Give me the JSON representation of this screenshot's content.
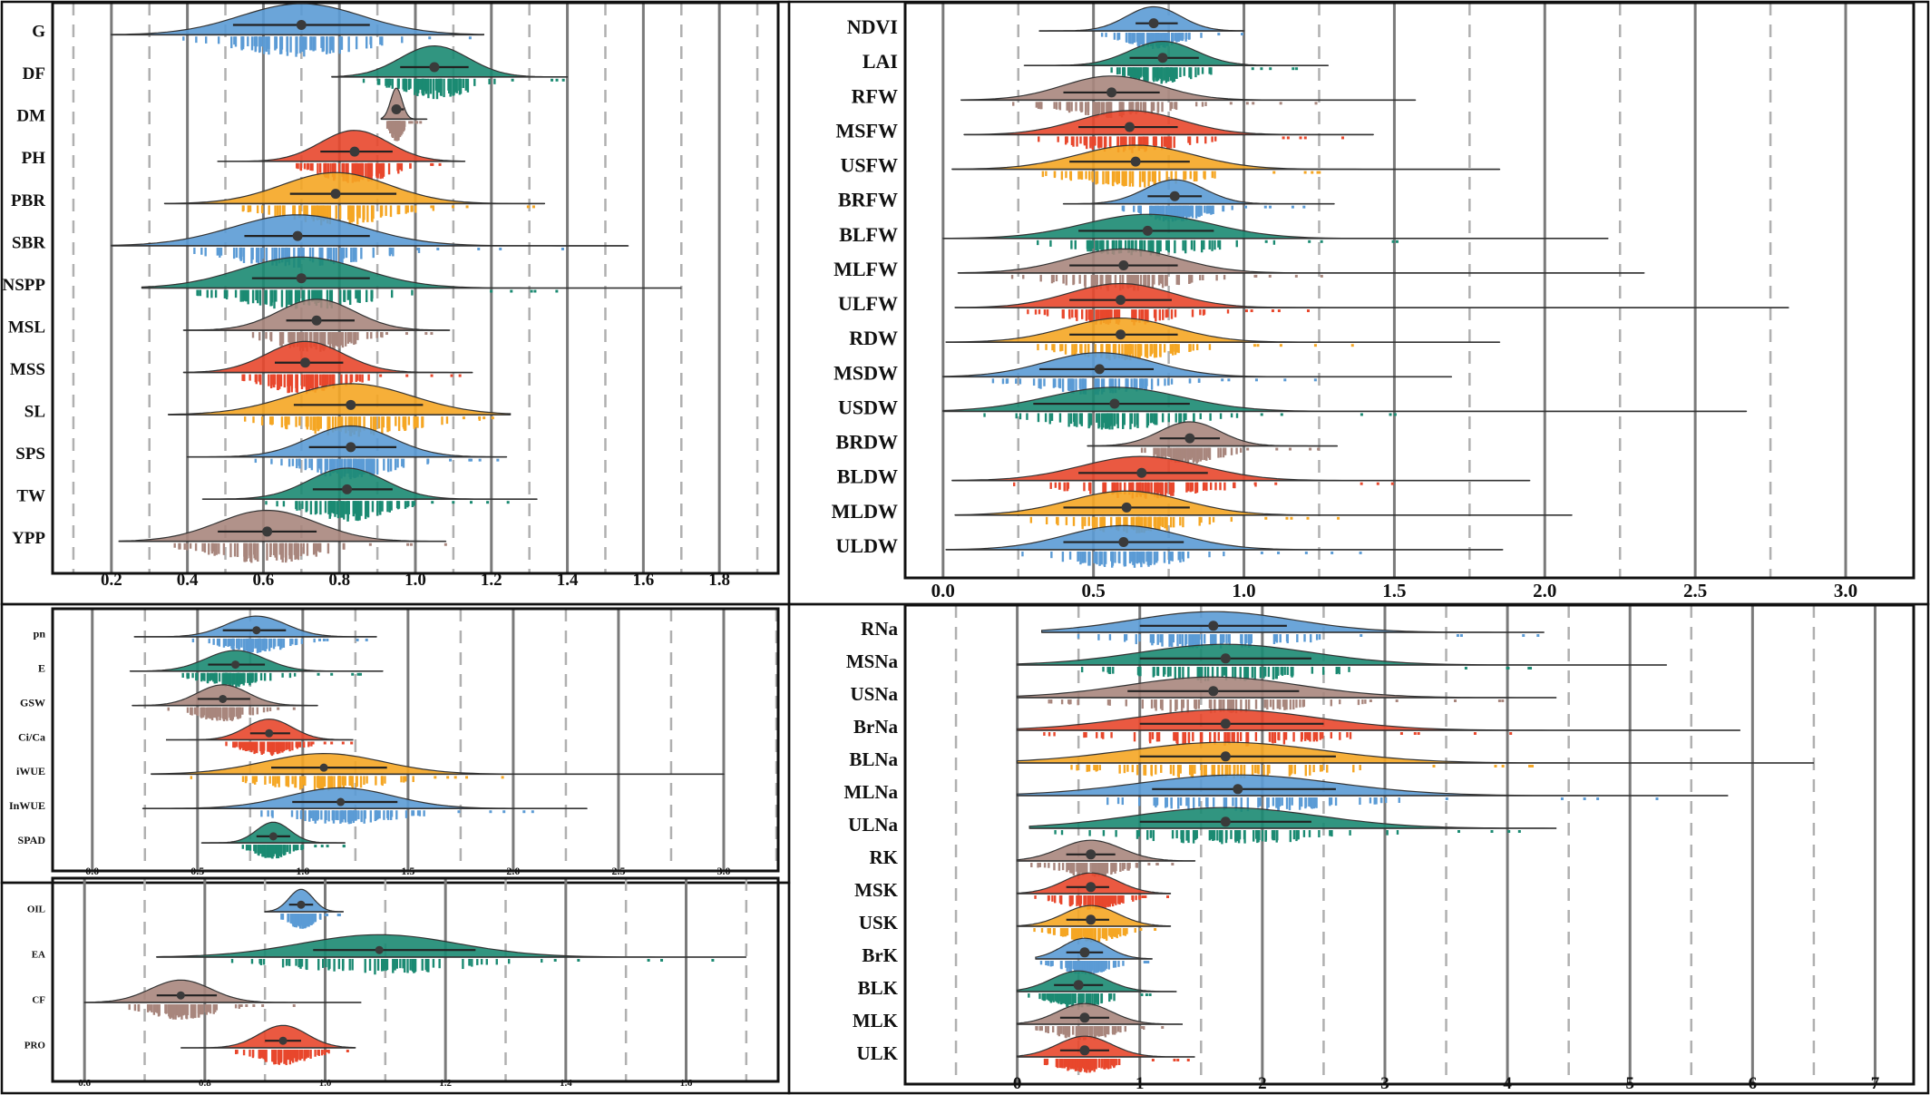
{
  "chart_data": [
    {
      "type": "raincloud",
      "panel": "top-left",
      "xlim": [
        0.05,
        1.95
      ],
      "xticks": [
        "0.2",
        "0.4",
        "0.6",
        "0.8",
        "1.0",
        "1.2",
        "1.4",
        "1.6",
        "1.8"
      ],
      "grid": "solid major + dashed minor vertical lines",
      "series": [
        {
          "name": "G",
          "color": "#5b9bd5",
          "median": 0.7,
          "min": 0.2,
          "max": 1.18,
          "q1": 0.52,
          "q3": 0.88,
          "spread": 0.16
        },
        {
          "name": "DF",
          "color": "#1b8a72",
          "median": 1.05,
          "min": 0.78,
          "max": 1.4,
          "q1": 0.96,
          "q3": 1.14,
          "spread": 0.09
        },
        {
          "name": "DM",
          "color": "#a8867d",
          "median": 0.95,
          "min": 0.91,
          "max": 1.03,
          "q1": 0.94,
          "q3": 0.97,
          "spread": 0.015
        },
        {
          "name": "PH",
          "color": "#e8472c",
          "median": 0.84,
          "min": 0.48,
          "max": 1.13,
          "q1": 0.75,
          "q3": 0.94,
          "spread": 0.09
        },
        {
          "name": "PBR",
          "color": "#f5a623",
          "median": 0.79,
          "min": 0.34,
          "max": 1.34,
          "q1": 0.67,
          "q3": 0.95,
          "spread": 0.14
        },
        {
          "name": "SBR",
          "color": "#5b9bd5",
          "median": 0.69,
          "min": 0.2,
          "max": 1.56,
          "q1": 0.55,
          "q3": 0.88,
          "spread": 0.17
        },
        {
          "name": "NSPP",
          "color": "#1b8a72",
          "median": 0.7,
          "min": 0.28,
          "max": 1.7,
          "q1": 0.57,
          "q3": 0.88,
          "spread": 0.16
        },
        {
          "name": "MSL",
          "color": "#a8867d",
          "median": 0.74,
          "min": 0.39,
          "max": 1.09,
          "q1": 0.66,
          "q3": 0.84,
          "spread": 0.1
        },
        {
          "name": "MSS",
          "color": "#e8472c",
          "median": 0.71,
          "min": 0.39,
          "max": 1.15,
          "q1": 0.63,
          "q3": 0.81,
          "spread": 0.1
        },
        {
          "name": "SL",
          "color": "#f5a623",
          "median": 0.83,
          "min": 0.35,
          "max": 1.25,
          "q1": 0.68,
          "q3": 1.02,
          "spread": 0.16
        },
        {
          "name": "SPS",
          "color": "#5b9bd5",
          "median": 0.83,
          "min": 0.4,
          "max": 1.24,
          "q1": 0.72,
          "q3": 0.95,
          "spread": 0.11
        },
        {
          "name": "TW",
          "color": "#1b8a72",
          "median": 0.82,
          "min": 0.44,
          "max": 1.32,
          "q1": 0.73,
          "q3": 0.94,
          "spread": 0.1
        },
        {
          "name": "YPP",
          "color": "#a8867d",
          "median": 0.61,
          "min": 0.22,
          "max": 1.08,
          "q1": 0.48,
          "q3": 0.74,
          "spread": 0.13
        }
      ]
    },
    {
      "type": "raincloud",
      "panel": "top-right",
      "xlim": [
        -0.12,
        3.22
      ],
      "xticks": [
        "0.0",
        "0.5",
        "1.0",
        "1.5",
        "2.0",
        "2.5",
        "3.0"
      ],
      "grid": "solid major + dashed minor vertical lines",
      "series": [
        {
          "name": "NDVI",
          "color": "#5b9bd5",
          "median": 0.7,
          "min": 0.32,
          "max": 1.0,
          "q1": 0.64,
          "q3": 0.78,
          "spread": 0.09
        },
        {
          "name": "LAI",
          "color": "#1b8a72",
          "median": 0.73,
          "min": 0.27,
          "max": 1.28,
          "q1": 0.62,
          "q3": 0.85,
          "spread": 0.11
        },
        {
          "name": "RFW",
          "color": "#a8867d",
          "median": 0.56,
          "min": 0.06,
          "max": 1.57,
          "q1": 0.4,
          "q3": 0.72,
          "spread": 0.16
        },
        {
          "name": "MSFW",
          "color": "#e8472c",
          "median": 0.62,
          "min": 0.07,
          "max": 1.43,
          "q1": 0.45,
          "q3": 0.78,
          "spread": 0.17
        },
        {
          "name": "USFW",
          "color": "#f5a623",
          "median": 0.64,
          "min": 0.03,
          "max": 1.85,
          "q1": 0.42,
          "q3": 0.82,
          "spread": 0.19
        },
        {
          "name": "BRFW",
          "color": "#5b9bd5",
          "median": 0.77,
          "min": 0.4,
          "max": 1.3,
          "q1": 0.68,
          "q3": 0.86,
          "spread": 0.1
        },
        {
          "name": "BLFW",
          "color": "#1b8a72",
          "median": 0.68,
          "min": 0.0,
          "max": 2.21,
          "q1": 0.45,
          "q3": 0.9,
          "spread": 0.21
        },
        {
          "name": "MLFW",
          "color": "#a8867d",
          "median": 0.6,
          "min": 0.05,
          "max": 2.33,
          "q1": 0.42,
          "q3": 0.78,
          "spread": 0.18
        },
        {
          "name": "ULFW",
          "color": "#e8472c",
          "median": 0.59,
          "min": 0.04,
          "max": 2.81,
          "q1": 0.42,
          "q3": 0.76,
          "spread": 0.17
        },
        {
          "name": "RDW",
          "color": "#f5a623",
          "median": 0.59,
          "min": 0.01,
          "max": 1.85,
          "q1": 0.42,
          "q3": 0.78,
          "spread": 0.18
        },
        {
          "name": "MSDW",
          "color": "#5b9bd5",
          "median": 0.52,
          "min": 0.0,
          "max": 1.69,
          "q1": 0.32,
          "q3": 0.7,
          "spread": 0.18
        },
        {
          "name": "USDW",
          "color": "#1b8a72",
          "median": 0.57,
          "min": 0.0,
          "max": 2.67,
          "q1": 0.3,
          "q3": 0.82,
          "spread": 0.22
        },
        {
          "name": "BRDW",
          "color": "#a8867d",
          "median": 0.82,
          "min": 0.48,
          "max": 1.31,
          "q1": 0.72,
          "q3": 0.92,
          "spread": 0.1
        },
        {
          "name": "BLDW",
          "color": "#e8472c",
          "median": 0.66,
          "min": 0.03,
          "max": 1.95,
          "q1": 0.45,
          "q3": 0.88,
          "spread": 0.2
        },
        {
          "name": "MLDW",
          "color": "#f5a623",
          "median": 0.61,
          "min": 0.04,
          "max": 2.09,
          "q1": 0.4,
          "q3": 0.82,
          "spread": 0.19
        },
        {
          "name": "ULDW",
          "color": "#5b9bd5",
          "median": 0.6,
          "min": 0.01,
          "max": 1.86,
          "q1": 0.4,
          "q3": 0.8,
          "spread": 0.19
        }
      ]
    },
    {
      "type": "raincloud",
      "panel": "middle-left",
      "xlim": [
        -0.18,
        3.25
      ],
      "xticks": [
        "0.0",
        "0.5",
        "1.0",
        "1.5",
        "2.0",
        "2.5",
        "3.0"
      ],
      "grid": "solid major + dashed minor vertical lines",
      "series": [
        {
          "name": "pn",
          "color": "#5b9bd5",
          "median": 0.78,
          "min": 0.2,
          "max": 1.35,
          "q1": 0.62,
          "q3": 0.92,
          "spread": 0.14
        },
        {
          "name": "E",
          "color": "#1b8a72",
          "median": 0.68,
          "min": 0.18,
          "max": 1.38,
          "q1": 0.55,
          "q3": 0.82,
          "spread": 0.14
        },
        {
          "name": "GSW",
          "color": "#a8867d",
          "median": 0.62,
          "min": 0.19,
          "max": 1.07,
          "q1": 0.5,
          "q3": 0.75,
          "spread": 0.12
        },
        {
          "name": "Ci/Ca",
          "color": "#e8472c",
          "median": 0.84,
          "min": 0.35,
          "max": 1.24,
          "q1": 0.75,
          "q3": 0.94,
          "spread": 0.11
        },
        {
          "name": "iWUE",
          "color": "#f5a623",
          "median": 1.1,
          "min": 0.28,
          "max": 3.0,
          "q1": 0.85,
          "q3": 1.4,
          "spread": 0.28
        },
        {
          "name": "InWUE",
          "color": "#5b9bd5",
          "median": 1.18,
          "min": 0.24,
          "max": 2.35,
          "q1": 0.95,
          "q3": 1.45,
          "spread": 0.25
        },
        {
          "name": "SPAD",
          "color": "#1b8a72",
          "median": 0.86,
          "min": 0.52,
          "max": 1.2,
          "q1": 0.78,
          "q3": 0.94,
          "spread": 0.08
        }
      ]
    },
    {
      "type": "raincloud",
      "panel": "bottom-left",
      "xlim": [
        0.55,
        1.75
      ],
      "xticks": [
        "0.6",
        "0.8",
        "1.0",
        "1.2",
        "1.4",
        "1.6"
      ],
      "grid": "solid major + dashed minor vertical lines",
      "series": [
        {
          "name": "OIL",
          "color": "#5b9bd5",
          "median": 0.96,
          "min": 0.9,
          "max": 1.03,
          "q1": 0.94,
          "q3": 0.98,
          "spread": 0.02
        },
        {
          "name": "EA",
          "color": "#1b8a72",
          "median": 1.09,
          "min": 0.72,
          "max": 1.7,
          "q1": 0.98,
          "q3": 1.25,
          "spread": 0.13
        },
        {
          "name": "CF",
          "color": "#a8867d",
          "median": 0.76,
          "min": 0.6,
          "max": 1.06,
          "q1": 0.72,
          "q3": 0.82,
          "spread": 0.05
        },
        {
          "name": "PRO",
          "color": "#e8472c",
          "median": 0.93,
          "min": 0.76,
          "max": 1.05,
          "q1": 0.9,
          "q3": 0.96,
          "spread": 0.04
        }
      ]
    },
    {
      "type": "raincloud",
      "panel": "bottom-right",
      "xlim": [
        -0.9,
        7.3
      ],
      "xticks": [
        "0",
        "1",
        "2",
        "3",
        "4",
        "5",
        "6",
        "7"
      ],
      "grid": "solid major + dashed minor vertical lines",
      "series": [
        {
          "name": "RNa",
          "color": "#5b9bd5",
          "median": 1.6,
          "min": 0.2,
          "max": 4.3,
          "q1": 1.0,
          "q3": 2.2,
          "spread": 0.65
        },
        {
          "name": "MSNa",
          "color": "#1b8a72",
          "median": 1.7,
          "min": 0.0,
          "max": 5.3,
          "q1": 1.0,
          "q3": 2.4,
          "spread": 0.7
        },
        {
          "name": "USNa",
          "color": "#a8867d",
          "median": 1.6,
          "min": 0.0,
          "max": 4.4,
          "q1": 0.9,
          "q3": 2.3,
          "spread": 0.7
        },
        {
          "name": "BrNa",
          "color": "#e8472c",
          "median": 1.7,
          "min": 0.0,
          "max": 5.9,
          "q1": 1.0,
          "q3": 2.5,
          "spread": 0.75
        },
        {
          "name": "BLNa",
          "color": "#f5a623",
          "median": 1.7,
          "min": 0.0,
          "max": 6.5,
          "q1": 1.0,
          "q3": 2.6,
          "spread": 0.8
        },
        {
          "name": "MLNa",
          "color": "#5b9bd5",
          "median": 1.8,
          "min": 0.0,
          "max": 5.8,
          "q1": 1.1,
          "q3": 2.6,
          "spread": 0.8
        },
        {
          "name": "ULNa",
          "color": "#1b8a72",
          "median": 1.7,
          "min": 0.1,
          "max": 4.4,
          "q1": 1.0,
          "q3": 2.4,
          "spread": 0.75
        },
        {
          "name": "RK",
          "color": "#a8867d",
          "median": 0.6,
          "min": 0.0,
          "max": 1.45,
          "q1": 0.4,
          "q3": 0.8,
          "spread": 0.25
        },
        {
          "name": "MSK",
          "color": "#e8472c",
          "median": 0.6,
          "min": 0.0,
          "max": 1.25,
          "q1": 0.4,
          "q3": 0.75,
          "spread": 0.22
        },
        {
          "name": "USK",
          "color": "#f5a623",
          "median": 0.6,
          "min": 0.0,
          "max": 1.25,
          "q1": 0.4,
          "q3": 0.75,
          "spread": 0.22
        },
        {
          "name": "BrK",
          "color": "#5b9bd5",
          "median": 0.55,
          "min": 0.15,
          "max": 1.1,
          "q1": 0.4,
          "q3": 0.7,
          "spread": 0.18
        },
        {
          "name": "BLK",
          "color": "#1b8a72",
          "median": 0.5,
          "min": 0.0,
          "max": 1.3,
          "q1": 0.3,
          "q3": 0.7,
          "spread": 0.22
        },
        {
          "name": "MLK",
          "color": "#a8867d",
          "median": 0.55,
          "min": 0.0,
          "max": 1.35,
          "q1": 0.35,
          "q3": 0.75,
          "spread": 0.22
        },
        {
          "name": "ULK",
          "color": "#e8472c",
          "median": 0.55,
          "min": 0.0,
          "max": 1.45,
          "q1": 0.35,
          "q3": 0.75,
          "spread": 0.22
        }
      ]
    }
  ]
}
